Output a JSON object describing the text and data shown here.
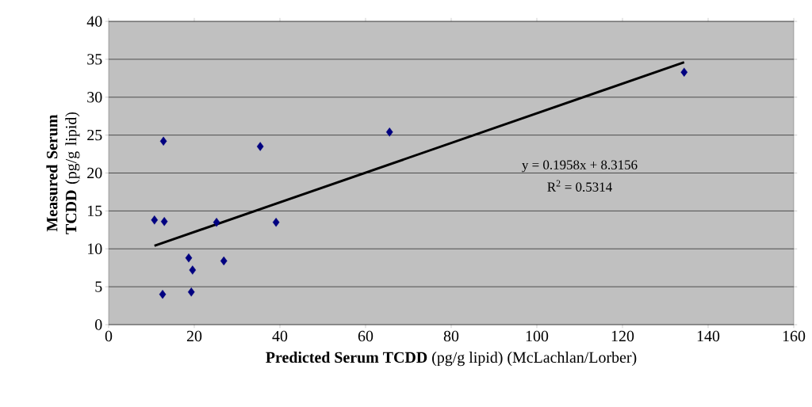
{
  "chart_data": {
    "type": "scatter",
    "xlabel": "**Predicted Serum TCDD** (pg/g lipid) (McLachlan/Lorber)",
    "ylabel": "**Measured Serum TCDD** (pg/g lipid)",
    "xlim": [
      0,
      160
    ],
    "xticks": [
      0,
      20,
      40,
      60,
      80,
      100,
      120,
      140,
      160
    ],
    "ylim": [
      0,
      40
    ],
    "yticks": [
      0,
      5,
      10,
      15,
      20,
      25,
      30,
      35,
      40
    ],
    "grid": "y",
    "series": [
      {
        "marker": "diamond",
        "color": "#000080",
        "x": [
          10.7,
          12.8,
          13.0,
          12.6,
          18.7,
          19.6,
          19.3,
          25.2,
          26.9,
          35.4,
          39.1,
          65.6,
          134.4
        ],
        "values": [
          13.8,
          24.2,
          13.6,
          4.0,
          8.8,
          7.2,
          4.3,
          13.5,
          8.4,
          23.5,
          13.5,
          25.4,
          33.3
        ]
      },
      {
        "type": "line",
        "marker": "none",
        "color": "#000000",
        "x": [
          10.7,
          134.4
        ],
        "values": [
          10.4,
          34.6
        ]
      }
    ],
    "annotations": [
      "y = 0.1958x + 8.3156",
      "R$^{2}$ = 0.5314"
    ]
  }
}
